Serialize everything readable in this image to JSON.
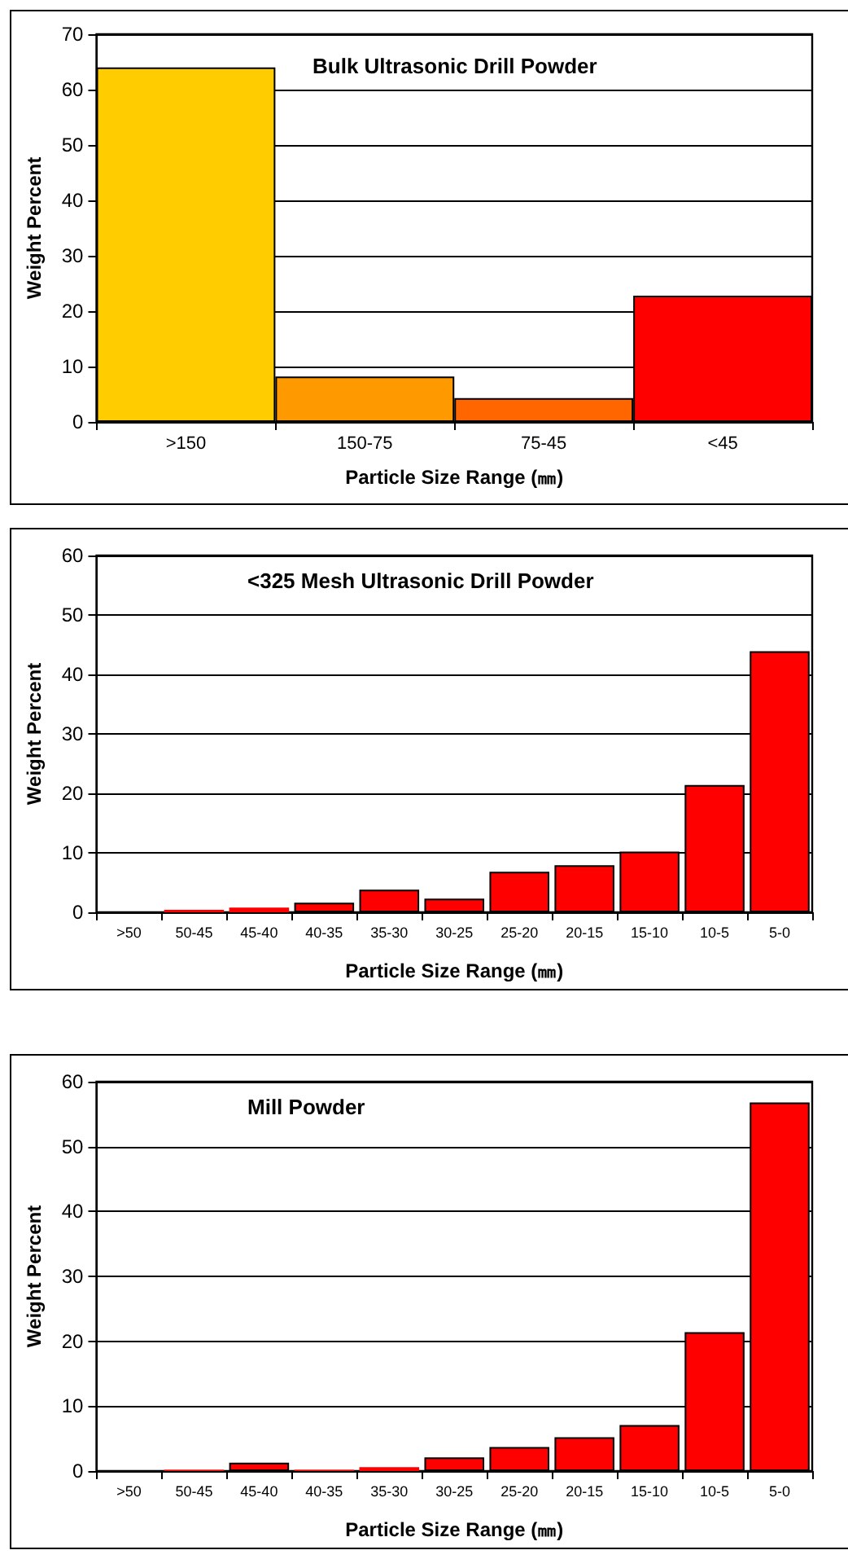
{
  "chart_data": [
    {
      "type": "bar",
      "title": "Bulk Ultrasonic Drill Powder",
      "xlabel": "Particle Size Range (㎜)",
      "ylabel": "Weight Percent",
      "categories": [
        ">150",
        "150-75",
        "75-45",
        "<45"
      ],
      "values": [
        64,
        8.2,
        4.3,
        22.8
      ],
      "colors": [
        "#ffcc00",
        "#ff9900",
        "#ff6600",
        "#ff0000"
      ],
      "ylim": [
        0,
        70
      ],
      "yticks": [
        0,
        10,
        20,
        30,
        40,
        50,
        60,
        70
      ],
      "grid": "y"
    },
    {
      "type": "bar",
      "title": "<325 Mesh Ultrasonic Drill Powder",
      "xlabel": "Particle Size Range (㎜)",
      "ylabel": "Weight Percent",
      "categories": [
        ">50",
        "50-45",
        "45-40",
        "40-35",
        "35-30",
        "30-25",
        "25-20",
        "20-15",
        "15-10",
        "10-5",
        "5-0"
      ],
      "values": [
        0,
        0.4,
        0.8,
        1.6,
        3.8,
        2.3,
        6.8,
        7.9,
        10.2,
        21.4,
        43.9
      ],
      "color": "#ff0000",
      "ylim": [
        0,
        60
      ],
      "yticks": [
        0,
        10,
        20,
        30,
        40,
        50,
        60
      ],
      "grid": "y"
    },
    {
      "type": "bar",
      "title": "Mill Powder",
      "xlabel": "Particle Size Range (㎜)",
      "ylabel": "Weight Percent",
      "categories": [
        ">50",
        "50-45",
        "45-40",
        "40-35",
        "35-30",
        "30-25",
        "25-20",
        "20-15",
        "15-10",
        "10-5",
        "5-0"
      ],
      "values": [
        0,
        0.2,
        1.3,
        0.2,
        0.6,
        2.1,
        3.7,
        5.2,
        7.1,
        21.4,
        56.8
      ],
      "color": "#ff0000",
      "ylim": [
        0,
        60
      ],
      "yticks": [
        0,
        10,
        20,
        30,
        40,
        50,
        60
      ],
      "grid": "y"
    }
  ]
}
